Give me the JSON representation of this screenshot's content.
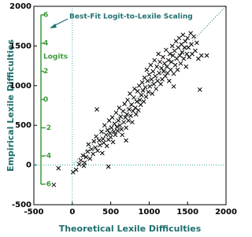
{
  "chart_data": {
    "type": "scatter",
    "xlabel": "Theoretical Lexile Difficulties",
    "ylabel": "Empirical Lexile Difficulties",
    "annotation": "Best-Fit Logit-to-Lexile Scaling",
    "y2label": "Logits",
    "xlim": [
      -500,
      2000
    ],
    "xticks": [
      -500,
      0,
      500,
      1000,
      1500,
      2000
    ],
    "ylim": [
      -500,
      2000
    ],
    "yticks": [
      -500,
      0,
      500,
      1000,
      1500,
      2000
    ],
    "y2lim": [
      -7.45,
      6.61
    ],
    "y2ticks": [
      6,
      4,
      2,
      0,
      -2,
      -4,
      -6
    ],
    "color": "#000000",
    "axis_title_color": "#1f6f6f",
    "reference_color": "#3aa8a8",
    "y2_color": "#3a9a3a",
    "series": [
      {
        "name": null,
        "color": "#000000",
        "x": [
          -240,
          -180,
          10,
          50,
          90,
          110,
          140,
          160,
          180,
          200,
          210,
          230,
          250,
          270,
          280,
          300,
          310,
          330,
          350,
          360,
          380,
          390,
          400,
          410,
          420,
          440,
          450,
          460,
          470,
          480,
          490,
          500,
          510,
          520,
          530,
          540,
          550,
          560,
          570,
          580,
          590,
          600,
          610,
          620,
          630,
          640,
          650,
          660,
          670,
          680,
          690,
          700,
          710,
          720,
          730,
          740,
          750,
          760,
          770,
          780,
          790,
          800,
          810,
          820,
          830,
          840,
          850,
          860,
          870,
          880,
          890,
          900,
          910,
          920,
          930,
          940,
          950,
          960,
          970,
          980,
          990,
          1000,
          1010,
          1020,
          1030,
          1040,
          1050,
          1060,
          1070,
          1080,
          1090,
          1100,
          1110,
          1120,
          1130,
          1140,
          1150,
          1160,
          1170,
          1180,
          1190,
          1200,
          1210,
          1220,
          1230,
          1240,
          1250,
          1260,
          1270,
          1280,
          1290,
          1300,
          1310,
          1320,
          1330,
          1340,
          1350,
          1360,
          1370,
          1380,
          1390,
          1400,
          1410,
          1420,
          1430,
          1440,
          1450,
          1460,
          1470,
          1480,
          1490,
          1500,
          1510,
          1520,
          1540,
          1550,
          1560,
          1580,
          1600,
          1620,
          1640,
          1680,
          1750,
          1660,
          1320,
          320,
          470,
          700,
          150
        ],
        "values": [
          -250,
          -40,
          -90,
          -60,
          10,
          60,
          120,
          30,
          100,
          170,
          260,
          80,
          200,
          140,
          300,
          220,
          360,
          180,
          310,
          250,
          420,
          150,
          330,
          280,
          500,
          380,
          240,
          440,
          320,
          560,
          400,
          350,
          470,
          600,
          290,
          420,
          520,
          380,
          660,
          480,
          430,
          560,
          720,
          500,
          610,
          450,
          380,
          680,
          540,
          770,
          600,
          470,
          640,
          820,
          560,
          700,
          900,
          620,
          760,
          540,
          680,
          850,
          960,
          720,
          640,
          800,
          930,
          690,
          1000,
          820,
          760,
          880,
          1040,
          940,
          800,
          1100,
          980,
          860,
          1200,
          1060,
          920,
          1140,
          990,
          1260,
          1080,
          900,
          1180,
          1020,
          1320,
          1120,
          960,
          1240,
          1060,
          1400,
          1160,
          1300,
          1020,
          1220,
          1080,
          1360,
          1180,
          1280,
          1120,
          1450,
          1240,
          1160,
          1320,
          1060,
          1400,
          1200,
          1300,
          1500,
          1380,
          1150,
          1440,
          1260,
          1560,
          1340,
          1200,
          1480,
          1600,
          1380,
          1280,
          1520,
          1420,
          1640,
          1340,
          1480,
          1560,
          1240,
          1400,
          1600,
          1480,
          1360,
          1660,
          1520,
          1400,
          1620,
          1440,
          1540,
          1340,
          1380,
          1380,
          950,
          990,
          700,
          -20,
          310,
          -10
        ]
      }
    ]
  }
}
